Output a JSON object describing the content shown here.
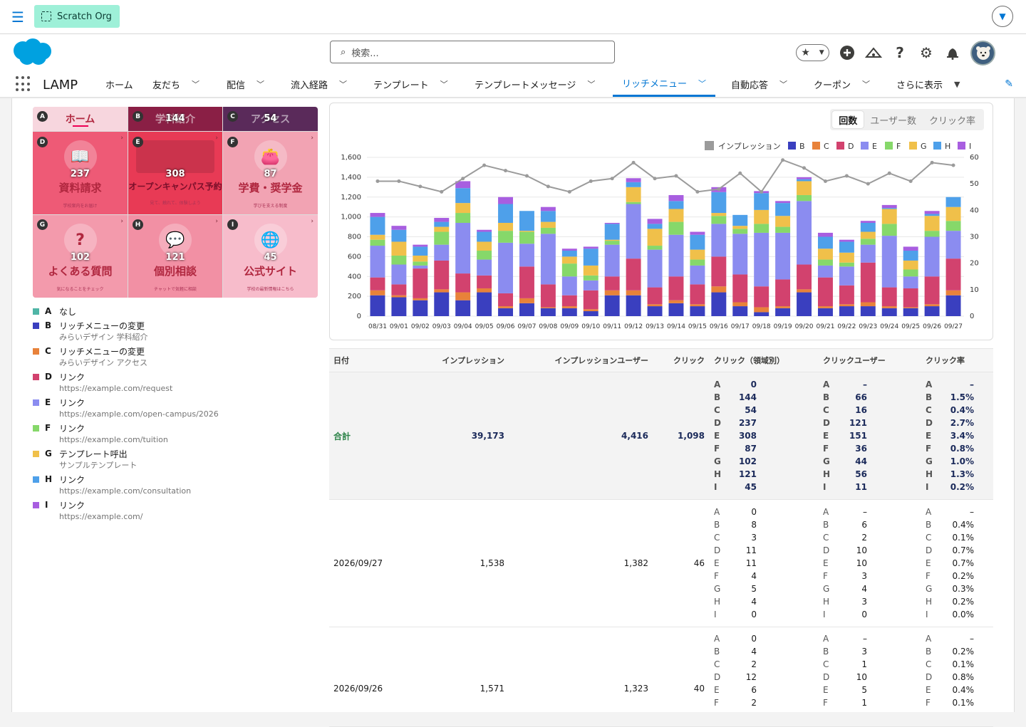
{
  "topbar": {
    "org_label": "Scratch Org"
  },
  "header": {
    "search_placeholder": "検索..."
  },
  "nav": {
    "app_name": "LAMP",
    "items": [
      {
        "label": "ホーム",
        "chevron": false
      },
      {
        "label": "友だち",
        "chevron": true
      },
      {
        "label": "配信",
        "chevron": true
      },
      {
        "label": "流入経路",
        "chevron": true
      },
      {
        "label": "テンプレート",
        "chevron": true
      },
      {
        "label": "テンプレートメッセージ",
        "chevron": true
      },
      {
        "label": "リッチメニュー",
        "chevron": true,
        "active": true
      },
      {
        "label": "自動応答",
        "chevron": true
      },
      {
        "label": "クーポン",
        "chevron": true
      },
      {
        "label": "さらに表示",
        "chevron": true
      }
    ]
  },
  "richmenu": {
    "tabs": [
      {
        "key": "A",
        "label": "ホーム",
        "count": ""
      },
      {
        "key": "B",
        "label": "学科紹介",
        "count": "144"
      },
      {
        "key": "C",
        "label": "アクセス",
        "count": "54"
      }
    ],
    "cells": [
      {
        "key": "D",
        "count": "237",
        "label": "資料請求",
        "sub": "学校案内をお届け",
        "icon": "book-icon"
      },
      {
        "key": "E",
        "count": "308",
        "label": "オープンキャンパス予約",
        "sub": "見て、触れて、体験しよう",
        "icon": "campus-photo-icon"
      },
      {
        "key": "F",
        "count": "87",
        "label": "学費・奨学金",
        "sub": "学びを支える制度",
        "icon": "wallet-icon"
      },
      {
        "key": "G",
        "count": "102",
        "label": "よくある質問",
        "sub": "気になることをチェック",
        "icon": "question-icon"
      },
      {
        "key": "H",
        "count": "121",
        "label": "個別相談",
        "sub": "チャットで気軽に相談",
        "icon": "chat-icon"
      },
      {
        "key": "I",
        "count": "45",
        "label": "公式サイト",
        "sub": "学校の最新情報はこちら",
        "icon": "globe-icon"
      }
    ]
  },
  "legend": [
    {
      "key": "A",
      "color": "#4fb5a6",
      "title": "なし",
      "sub": ""
    },
    {
      "key": "B",
      "color": "#3a3fbf",
      "title": "リッチメニューの変更",
      "sub": "みらいデザイン 学科紹介"
    },
    {
      "key": "C",
      "color": "#e8823a",
      "title": "リッチメニューの変更",
      "sub": "みらいデザイン アクセス"
    },
    {
      "key": "D",
      "color": "#d2426e",
      "title": "リンク",
      "sub": "https://example.com/request"
    },
    {
      "key": "E",
      "color": "#8b8cf0",
      "title": "リンク",
      "sub": "https://example.com/open-campus/2026"
    },
    {
      "key": "F",
      "color": "#86d86a",
      "title": "リンク",
      "sub": "https://example.com/tuition"
    },
    {
      "key": "G",
      "color": "#f0c04a",
      "title": "テンプレート呼出",
      "sub": "サンプルテンプレート"
    },
    {
      "key": "H",
      "color": "#4ea0ea",
      "title": "リンク",
      "sub": "https://example.com/consultation"
    },
    {
      "key": "I",
      "color": "#a85ee0",
      "title": "リンク",
      "sub": "https://example.com/"
    }
  ],
  "segment": {
    "options": [
      "回数",
      "ユーザー数",
      "クリック率"
    ],
    "selected": 0
  },
  "chart_data": {
    "type": "bar",
    "stacked": true,
    "categories": [
      "08/31",
      "09/01",
      "09/02",
      "09/03",
      "09/04",
      "09/05",
      "09/06",
      "09/07",
      "09/08",
      "09/09",
      "09/10",
      "09/11",
      "09/12",
      "09/13",
      "09/14",
      "09/15",
      "09/16",
      "09/17",
      "09/18",
      "09/19",
      "09/20",
      "09/21",
      "09/22",
      "09/23",
      "09/24",
      "09/25",
      "09/26",
      "09/27"
    ],
    "ylim": [
      0,
      1600
    ],
    "y_ticks": [
      0,
      200,
      400,
      600,
      800,
      1000,
      1200,
      1400,
      1600
    ],
    "y2lim": [
      0,
      60
    ],
    "y2_ticks": [
      0,
      10,
      20,
      30,
      40,
      50,
      60
    ],
    "legend_position": "top-right",
    "series": [
      {
        "name": "B",
        "color": "#3a3fbf",
        "values": [
          210,
          190,
          160,
          240,
          160,
          240,
          80,
          130,
          80,
          80,
          50,
          210,
          210,
          100,
          130,
          100,
          240,
          100,
          40,
          80,
          240,
          80,
          100,
          100,
          80,
          80,
          100,
          210
        ]
      },
      {
        "name": "C",
        "color": "#e8823a",
        "values": [
          50,
          20,
          20,
          30,
          80,
          40,
          20,
          50,
          10,
          20,
          20,
          50,
          50,
          20,
          30,
          20,
          60,
          40,
          50,
          20,
          30,
          20,
          20,
          40,
          20,
          10,
          20,
          50
        ]
      },
      {
        "name": "D",
        "color": "#d2426e",
        "values": [
          130,
          110,
          300,
          290,
          190,
          130,
          130,
          320,
          230,
          110,
          190,
          140,
          320,
          170,
          240,
          200,
          300,
          280,
          210,
          270,
          250,
          290,
          190,
          400,
          190,
          190,
          280,
          320
        ]
      },
      {
        "name": "E",
        "color": "#8b8cf0",
        "values": [
          320,
          200,
          30,
          160,
          510,
          160,
          510,
          230,
          510,
          190,
          100,
          320,
          550,
          380,
          420,
          190,
          330,
          410,
          540,
          470,
          640,
          120,
          190,
          180,
          520,
          120,
          400,
          280
        ]
      },
      {
        "name": "F",
        "color": "#86d86a",
        "values": [
          60,
          90,
          40,
          130,
          100,
          90,
          120,
          120,
          60,
          130,
          50,
          40,
          20,
          40,
          130,
          60,
          80,
          50,
          90,
          60,
          60,
          60,
          40,
          60,
          120,
          70,
          60,
          100
        ]
      },
      {
        "name": "G",
        "color": "#f0c04a",
        "values": [
          50,
          140,
          60,
          50,
          100,
          90,
          80,
          10,
          60,
          70,
          100,
          10,
          150,
          170,
          130,
          100,
          30,
          30,
          140,
          110,
          140,
          110,
          100,
          70,
          150,
          90,
          150,
          140
        ]
      },
      {
        "name": "H",
        "color": "#4ea0ea",
        "values": [
          180,
          120,
          90,
          50,
          150,
          100,
          190,
          200,
          110,
          60,
          170,
          160,
          50,
          50,
          80,
          150,
          210,
          110,
          170,
          130,
          20,
          120,
          110,
          90,
          10,
          100,
          20,
          100
        ]
      },
      {
        "name": "I",
        "color": "#a85ee0",
        "values": [
          40,
          40,
          20,
          40,
          70,
          20,
          70,
          0,
          40,
          20,
          20,
          10,
          40,
          50,
          60,
          30,
          50,
          0,
          20,
          20,
          20,
          40,
          20,
          20,
          30,
          40,
          30,
          0
        ]
      }
    ],
    "line_series": {
      "name": "インプレッション",
      "color": "#9b9b9b",
      "axis": "right",
      "values": [
        51,
        51,
        49,
        47,
        52,
        57,
        55,
        53,
        49,
        47,
        51,
        52,
        58,
        52,
        53,
        47,
        48,
        54,
        47,
        59,
        56,
        51,
        53,
        50,
        54,
        51,
        58,
        57
      ]
    }
  },
  "table": {
    "headers": [
      "日付",
      "インプレッション",
      "インプレッションユーザー",
      "クリック",
      "クリック（領域別）",
      "クリックユーザー",
      "クリック率"
    ],
    "rows": [
      {
        "date": "合計",
        "imp": "39,173",
        "impu": "4,416",
        "click": "1,098",
        "area": [
          [
            "A",
            "0"
          ],
          [
            "B",
            "144"
          ],
          [
            "C",
            "54"
          ],
          [
            "D",
            "237"
          ],
          [
            "E",
            "308"
          ],
          [
            "F",
            "87"
          ],
          [
            "G",
            "102"
          ],
          [
            "H",
            "121"
          ],
          [
            "I",
            "45"
          ]
        ],
        "cu": [
          [
            "A",
            "–"
          ],
          [
            "B",
            "66"
          ],
          [
            "C",
            "16"
          ],
          [
            "D",
            "121"
          ],
          [
            "E",
            "151"
          ],
          [
            "F",
            "36"
          ],
          [
            "G",
            "44"
          ],
          [
            "H",
            "56"
          ],
          [
            "I",
            "11"
          ]
        ],
        "cr": [
          [
            "A",
            "–"
          ],
          [
            "B",
            "1.5%"
          ],
          [
            "C",
            "0.4%"
          ],
          [
            "D",
            "2.7%"
          ],
          [
            "E",
            "3.4%"
          ],
          [
            "F",
            "0.8%"
          ],
          [
            "G",
            "1.0%"
          ],
          [
            "H",
            "1.3%"
          ],
          [
            "I",
            "0.2%"
          ]
        ]
      },
      {
        "date": "2026/09/27",
        "imp": "1,538",
        "impu": "1,382",
        "click": "46",
        "area": [
          [
            "A",
            "0"
          ],
          [
            "B",
            "8"
          ],
          [
            "C",
            "3"
          ],
          [
            "D",
            "11"
          ],
          [
            "E",
            "11"
          ],
          [
            "F",
            "4"
          ],
          [
            "G",
            "5"
          ],
          [
            "H",
            "4"
          ],
          [
            "I",
            "0"
          ]
        ],
        "cu": [
          [
            "A",
            "–"
          ],
          [
            "B",
            "6"
          ],
          [
            "C",
            "2"
          ],
          [
            "D",
            "10"
          ],
          [
            "E",
            "10"
          ],
          [
            "F",
            "3"
          ],
          [
            "G",
            "4"
          ],
          [
            "H",
            "3"
          ],
          [
            "I",
            "0"
          ]
        ],
        "cr": [
          [
            "A",
            "–"
          ],
          [
            "B",
            "0.4%"
          ],
          [
            "C",
            "0.1%"
          ],
          [
            "D",
            "0.7%"
          ],
          [
            "E",
            "0.7%"
          ],
          [
            "F",
            "0.2%"
          ],
          [
            "G",
            "0.3%"
          ],
          [
            "H",
            "0.2%"
          ],
          [
            "I",
            "0.0%"
          ]
        ]
      },
      {
        "date": "2026/09/26",
        "imp": "1,571",
        "impu": "1,323",
        "click": "40",
        "area": [
          [
            "A",
            "0"
          ],
          [
            "B",
            "4"
          ],
          [
            "C",
            "2"
          ],
          [
            "D",
            "12"
          ],
          [
            "E",
            "6"
          ],
          [
            "F",
            "2"
          ]
        ],
        "cu": [
          [
            "A",
            "–"
          ],
          [
            "B",
            "3"
          ],
          [
            "C",
            "1"
          ],
          [
            "D",
            "10"
          ],
          [
            "E",
            "5"
          ],
          [
            "F",
            "1"
          ]
        ],
        "cr": [
          [
            "A",
            "–"
          ],
          [
            "B",
            "0.2%"
          ],
          [
            "C",
            "0.1%"
          ],
          [
            "D",
            "0.8%"
          ],
          [
            "E",
            "0.4%"
          ],
          [
            "F",
            "0.1%"
          ]
        ]
      }
    ]
  }
}
